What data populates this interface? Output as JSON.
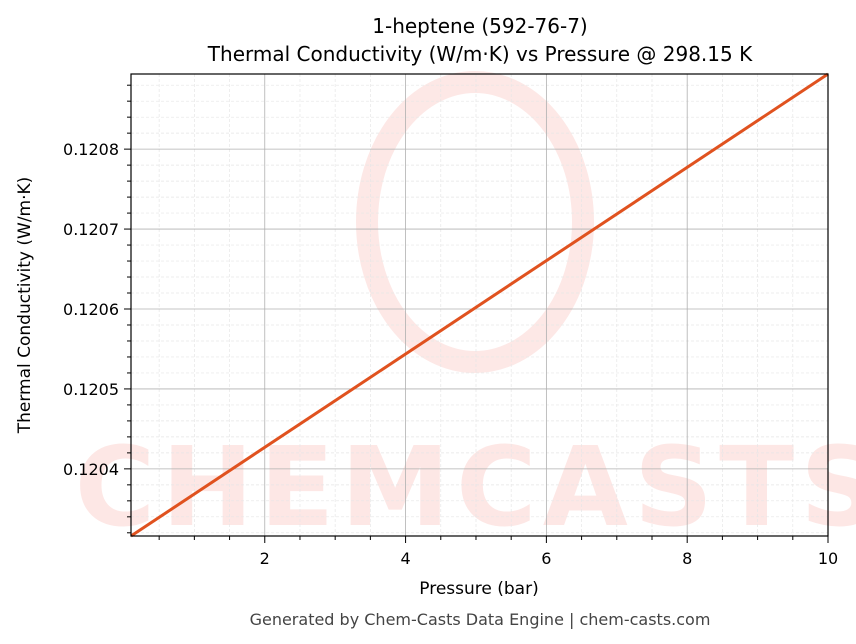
{
  "chart_data": {
    "type": "line",
    "title": "1-heptene (592-76-7)",
    "subtitle": "Thermal Conductivity (W/m·K) vs Pressure @ 298.15 K",
    "xlabel": "Pressure (bar)",
    "ylabel": "Thermal Conductivity (W/m·K)",
    "xlim": [
      0.1,
      10
    ],
    "ylim": [
      0.120316,
      0.120894
    ],
    "xticks": [
      2,
      4,
      6,
      8,
      10
    ],
    "yticks": [
      0.1204,
      0.1205,
      0.1206,
      0.1207,
      0.1208
    ],
    "ytick_labels": [
      "0.1204",
      "0.1205",
      "0.1206",
      "0.1207",
      "0.1208"
    ],
    "grid": true,
    "series": [
      {
        "color": "#e0521f",
        "x": [
          0.1,
          10
        ],
        "y": [
          0.120316,
          0.120894
        ]
      }
    ]
  },
  "watermark": "CHEMCASTS",
  "footer": "Generated by Chem-Casts Data Engine | chem-casts.com"
}
